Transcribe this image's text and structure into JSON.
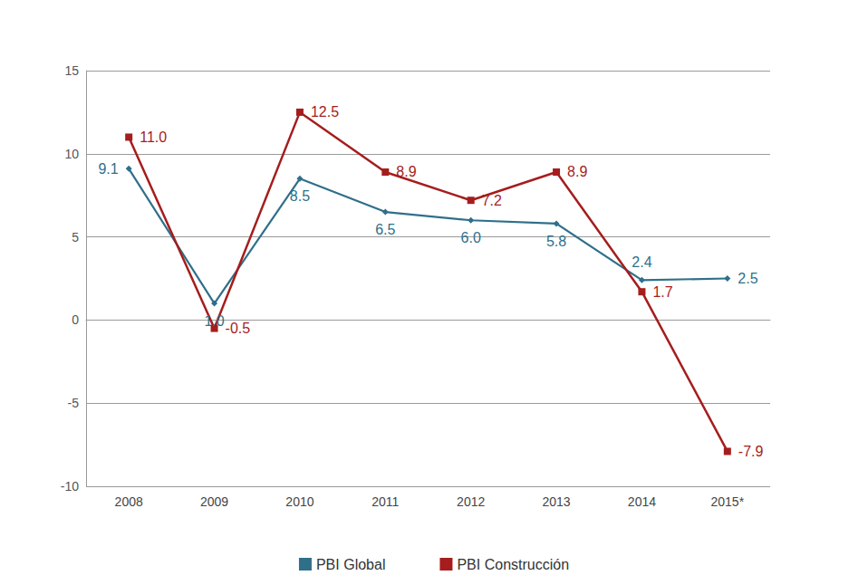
{
  "chart_data": {
    "type": "line",
    "categories": [
      "2008",
      "2009",
      "2010",
      "2011",
      "2012",
      "2013",
      "2014",
      "2015*"
    ],
    "series": [
      {
        "name": "PBI Global",
        "color": "#2f6f8a",
        "marker": "diamond",
        "values": [
          9.1,
          1.0,
          8.5,
          6.5,
          6.0,
          5.8,
          2.4,
          2.5
        ],
        "value_labels": [
          "9.1",
          "1.0",
          "8.5",
          "6.5",
          "6.0",
          "5.8",
          "2.4",
          "2.5"
        ]
      },
      {
        "name": "PBI Construcción",
        "color": "#a51d1d",
        "marker": "square",
        "values": [
          11.0,
          -0.5,
          12.5,
          8.9,
          7.2,
          8.9,
          1.7,
          -7.9
        ],
        "value_labels": [
          "11.0",
          "-0.5",
          "12.5",
          "8.9",
          "7.2",
          "8.9",
          "1.7",
          "-7.9"
        ]
      }
    ],
    "ylim": [
      -10,
      15
    ],
    "yticks": [
      -10,
      -5,
      0,
      5,
      10,
      15
    ],
    "grid": true,
    "legend": "bottom",
    "data_labels": true
  }
}
